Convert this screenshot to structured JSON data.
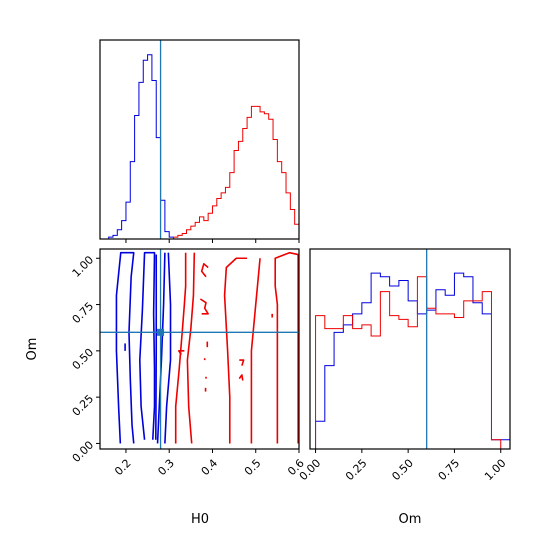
{
  "chart_data": {
    "type": "corner",
    "parameters": [
      "H0",
      "Om"
    ],
    "truth": {
      "H0": 0.28,
      "Om": 0.6
    },
    "colors": {
      "blue": "#0000dd",
      "red": "#ee0000",
      "truth": "#1f77b4",
      "axes": "#000000"
    },
    "panels": [
      {
        "id": "hist-H0",
        "type": "step-histogram",
        "xlim": [
          0.14,
          0.6
        ],
        "ylim": [
          0,
          1.08
        ],
        "x_ticks": [
          0.2,
          0.3,
          0.4,
          0.5,
          0.6
        ],
        "show_tick_labels": false,
        "series": [
          {
            "color_key": "blue",
            "bin_width": 0.01,
            "bin_starts": [
              0.16,
              0.17,
              0.18,
              0.19,
              0.2,
              0.21,
              0.22,
              0.23,
              0.24,
              0.25,
              0.26,
              0.27,
              0.28,
              0.29,
              0.3,
              0.31
            ],
            "values": [
              0.01,
              0.02,
              0.05,
              0.1,
              0.2,
              0.42,
              0.67,
              0.85,
              0.97,
              1.0,
              0.86,
              0.55,
              0.21,
              0.04,
              0.01,
              0.0
            ]
          },
          {
            "color_key": "red",
            "bin_width": 0.01,
            "bin_starts": [
              0.31,
              0.32,
              0.33,
              0.34,
              0.35,
              0.36,
              0.37,
              0.38,
              0.39,
              0.4,
              0.41,
              0.42,
              0.43,
              0.44,
              0.45,
              0.46,
              0.47,
              0.48,
              0.49,
              0.5,
              0.51,
              0.52,
              0.53,
              0.54,
              0.55,
              0.56,
              0.57,
              0.58,
              0.59
            ],
            "values": [
              0.01,
              0.02,
              0.03,
              0.05,
              0.07,
              0.09,
              0.12,
              0.1,
              0.14,
              0.18,
              0.22,
              0.25,
              0.28,
              0.36,
              0.48,
              0.53,
              0.6,
              0.66,
              0.72,
              0.72,
              0.69,
              0.68,
              0.65,
              0.54,
              0.42,
              0.36,
              0.25,
              0.16,
              0.08
            ]
          }
        ]
      },
      {
        "id": "hist-Om",
        "type": "step-histogram",
        "xlim": [
          -0.03,
          1.05
        ],
        "ylim": [
          0,
          1.08
        ],
        "x_ticks": [
          0.0,
          0.25,
          0.5,
          0.75,
          1.0
        ],
        "x_tick_labels": [
          "0.00",
          "0.25",
          "0.50",
          "0.75",
          "1.00"
        ],
        "xlabel": "Om",
        "series": [
          {
            "color_key": "blue",
            "bin_width": 0.05,
            "bin_starts": [
              0.0,
              0.05,
              0.1,
              0.15,
              0.2,
              0.25,
              0.3,
              0.35,
              0.4,
              0.45,
              0.5,
              0.55,
              0.6,
              0.65,
              0.7,
              0.75,
              0.8,
              0.85,
              0.9,
              0.95,
              1.0
            ],
            "values": [
              0.15,
              0.45,
              0.63,
              0.67,
              0.73,
              0.79,
              0.95,
              0.93,
              0.88,
              0.91,
              0.8,
              0.73,
              0.75,
              0.86,
              0.83,
              0.95,
              0.93,
              0.79,
              0.73,
              0.05,
              0.05
            ]
          },
          {
            "color_key": "red",
            "bin_width": 0.05,
            "bin_starts": [
              0.0,
              0.05,
              0.1,
              0.15,
              0.2,
              0.25,
              0.3,
              0.35,
              0.4,
              0.45,
              0.5,
              0.55,
              0.6,
              0.65,
              0.7,
              0.75,
              0.8,
              0.85,
              0.9,
              0.95
            ],
            "values": [
              0.72,
              0.65,
              0.65,
              0.72,
              0.65,
              0.67,
              0.61,
              0.85,
              0.72,
              0.7,
              0.66,
              0.93,
              0.76,
              0.73,
              0.73,
              0.71,
              0.8,
              0.8,
              0.85,
              0.05
            ]
          }
        ]
      },
      {
        "id": "contour-H0-Om",
        "type": "contour",
        "xlim": [
          0.14,
          0.6
        ],
        "ylim": [
          -0.03,
          1.05
        ],
        "x_ticks": [
          0.2,
          0.3,
          0.4,
          0.5,
          0.6
        ],
        "x_tick_labels": [
          "0.2",
          "0.3",
          "0.4",
          "0.5",
          "0.6"
        ],
        "y_ticks": [
          0.0,
          0.25,
          0.5,
          0.75,
          1.0
        ],
        "y_tick_labels": [
          "0.00",
          "0.25",
          "0.50",
          "0.75",
          "1.00"
        ],
        "xlabel": "H0",
        "ylabel": "Om",
        "truth_point_marker": true,
        "contours": [
          {
            "color_key": "blue",
            "points": [
              [
                0.187,
                0.0
              ],
              [
                0.183,
                0.2
              ],
              [
                0.178,
                0.5
              ],
              [
                0.178,
                0.8
              ],
              [
                0.188,
                1.03
              ],
              [
                0.218,
                1.03
              ],
              [
                0.212,
                0.9
              ],
              [
                0.207,
                0.6
              ],
              [
                0.21,
                0.35
              ],
              [
                0.214,
                0.1
              ],
              [
                0.218,
                0.0
              ]
            ]
          },
          {
            "color_key": "blue",
            "points": [
              [
                0.243,
                0.02
              ],
              [
                0.235,
                0.2
              ],
              [
                0.232,
                0.45
              ],
              [
                0.238,
                0.72
              ],
              [
                0.243,
                1.03
              ],
              [
                0.266,
                1.03
              ],
              [
                0.264,
                0.7
              ],
              [
                0.266,
                0.4
              ],
              [
                0.266,
                0.2
              ],
              [
                0.262,
                0.02
              ]
            ]
          },
          {
            "color_key": "blue",
            "points": [
              [
                0.269,
                0.02
              ],
              [
                0.27,
                0.5
              ],
              [
                0.27,
                1.02
              ]
            ]
          },
          {
            "color_key": "blue",
            "points": [
              [
                0.273,
                0.0
              ],
              [
                0.282,
                0.45
              ],
              [
                0.287,
                0.75
              ],
              [
                0.29,
                1.03
              ]
            ]
          },
          {
            "color_key": "blue",
            "points": [
              [
                0.29,
                0.0
              ],
              [
                0.294,
                0.2
              ],
              [
                0.303,
                0.45
              ],
              [
                0.303,
                0.75
              ],
              [
                0.298,
                1.03
              ]
            ]
          },
          {
            "color_key": "blue",
            "points": [
              [
                0.198,
                0.5
              ],
              [
                0.198,
                0.54
              ]
            ]
          },
          {
            "color_key": "red",
            "points": [
              [
                0.315,
                0.0
              ],
              [
                0.315,
                0.2
              ],
              [
                0.323,
                0.4
              ],
              [
                0.33,
                0.6
              ],
              [
                0.335,
                0.75
              ],
              [
                0.338,
                0.85
              ],
              [
                0.338,
                1.03
              ]
            ]
          },
          {
            "color_key": "red",
            "points": [
              [
                0.352,
                0.0
              ],
              [
                0.345,
                0.2
              ],
              [
                0.342,
                0.45
              ],
              [
                0.35,
                0.62
              ],
              [
                0.356,
                0.8
              ],
              [
                0.358,
                1.03
              ]
            ]
          },
          {
            "color_key": "red",
            "points": [
              [
                0.44,
                0.0
              ],
              [
                0.44,
                0.25
              ],
              [
                0.435,
                0.5
              ],
              [
                0.428,
                0.8
              ],
              [
                0.432,
                0.95
              ],
              [
                0.455,
                1.0
              ],
              [
                0.48,
                1.0
              ]
            ]
          },
          {
            "color_key": "red",
            "points": [
              [
                0.49,
                0.0
              ],
              [
                0.49,
                0.25
              ],
              [
                0.49,
                0.5
              ],
              [
                0.5,
                0.75
              ],
              [
                0.506,
                0.9
              ],
              [
                0.51,
                1.0
              ]
            ]
          },
          {
            "color_key": "red",
            "points": [
              [
                0.55,
                0.0
              ],
              [
                0.55,
                0.2
              ],
              [
                0.55,
                0.5
              ],
              [
                0.55,
                0.75
              ],
              [
                0.545,
                0.85
              ],
              [
                0.545,
                1.0
              ],
              [
                0.578,
                1.03
              ],
              [
                0.598,
                1.02
              ],
              [
                0.598,
                0.0
              ]
            ]
          },
          {
            "color_key": "red",
            "points": [
              [
                0.328,
                0.48
              ],
              [
                0.322,
                0.5
              ],
              [
                0.335,
                0.5
              ]
            ]
          },
          {
            "color_key": "red",
            "points": [
              [
                0.385,
                0.9
              ],
              [
                0.375,
                0.93
              ],
              [
                0.38,
                0.97
              ],
              [
                0.39,
                0.95
              ]
            ]
          },
          {
            "color_key": "red",
            "points": [
              [
                0.372,
                0.78
              ],
              [
                0.385,
                0.76
              ],
              [
                0.382,
                0.73
              ],
              [
                0.39,
                0.7
              ],
              [
                0.375,
                0.7
              ]
            ]
          },
          {
            "color_key": "red",
            "points": [
              [
                0.388,
                0.52
              ],
              [
                0.388,
                0.55
              ]
            ]
          },
          {
            "color_key": "red",
            "points": [
              [
                0.384,
                0.28
              ],
              [
                0.384,
                0.3
              ]
            ]
          },
          {
            "color_key": "red",
            "points": [
              [
                0.385,
                0.35
              ],
              [
                0.385,
                0.36
              ]
            ]
          },
          {
            "color_key": "red",
            "points": [
              [
                0.382,
                0.45
              ],
              [
                0.382,
                0.46
              ]
            ]
          },
          {
            "color_key": "red",
            "points": [
              [
                0.462,
                0.45
              ],
              [
                0.472,
                0.45
              ],
              [
                0.468,
                0.42
              ]
            ]
          },
          {
            "color_key": "red",
            "points": [
              [
                0.462,
                0.35
              ],
              [
                0.468,
                0.37
              ],
              [
                0.47,
                0.34
              ]
            ]
          },
          {
            "color_key": "red",
            "points": [
              [
                0.538,
                0.68
              ],
              [
                0.538,
                0.7
              ]
            ]
          }
        ]
      }
    ]
  }
}
